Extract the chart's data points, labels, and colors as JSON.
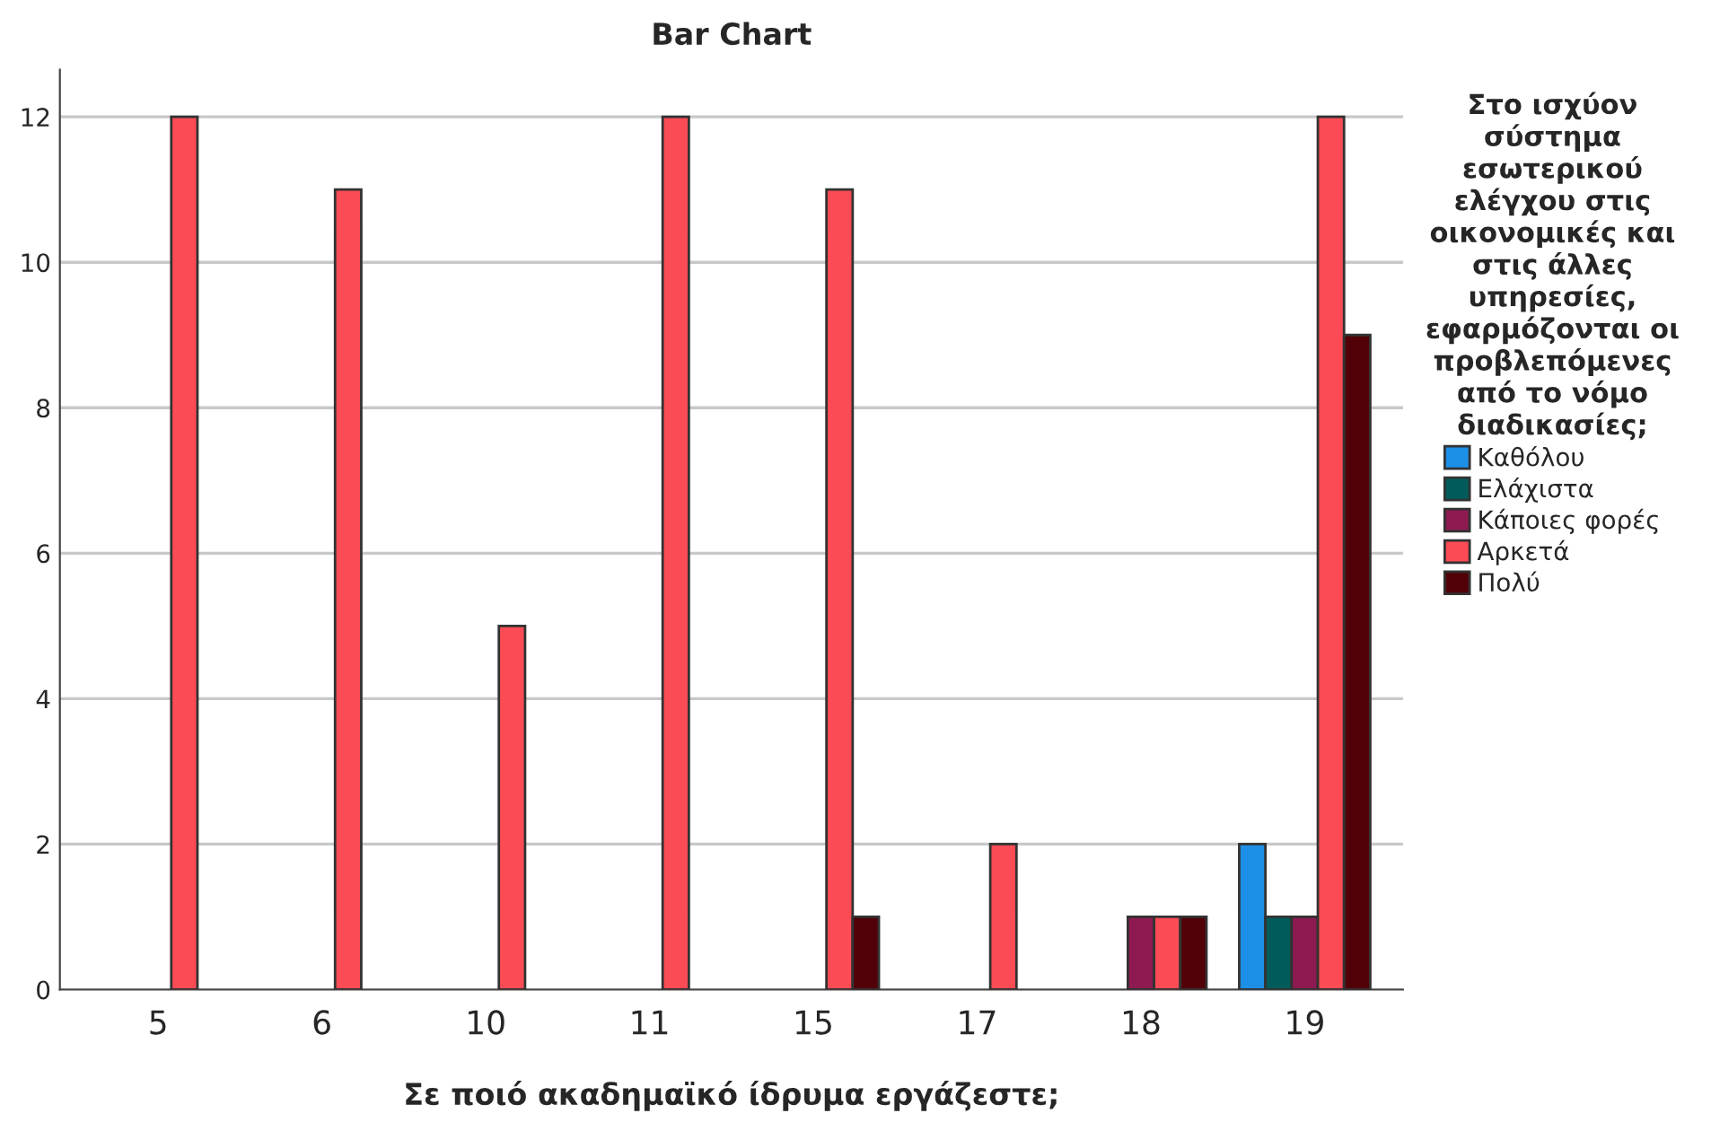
{
  "chart_data": {
    "type": "bar",
    "title": "Bar Chart",
    "xlabel": "Σε ποιό ακαδημαϊκό ίδρυμα εργάζεστε;",
    "legend_title": "Στο ισχύον\nσύστημα\nεσωτερικού\nελέγχου στις\nοικονομικές και\nστις άλλες\nυπηρεσίες,\nεφαρμόζονται οι\nπροβλεπόμενες\nαπό το νόμο\nδιαδικασίες;",
    "categories": [
      "5",
      "6",
      "10",
      "11",
      "15",
      "17",
      "18",
      "19"
    ],
    "series": [
      {
        "name": "Καθόλου",
        "color": "#1e8fe6",
        "values": [
          null,
          null,
          null,
          null,
          null,
          null,
          null,
          2
        ]
      },
      {
        "name": "Ελάχιστα",
        "color": "#005c5a",
        "values": [
          null,
          null,
          null,
          null,
          null,
          null,
          null,
          1
        ]
      },
      {
        "name": "Κάποιες φορές",
        "color": "#8e1a52",
        "values": [
          null,
          null,
          null,
          null,
          null,
          null,
          1,
          1
        ]
      },
      {
        "name": "Αρκετά",
        "color": "#fb4b55",
        "values": [
          12,
          11,
          5,
          12,
          11,
          2,
          1,
          12
        ]
      },
      {
        "name": "Πολύ",
        "color": "#520008",
        "values": [
          null,
          null,
          null,
          null,
          1,
          null,
          1,
          9
        ]
      }
    ],
    "ylim": [
      0,
      12.65
    ],
    "yticks": [
      0,
      2,
      4,
      6,
      8,
      10,
      12
    ],
    "grid": "y",
    "legend": "right"
  }
}
